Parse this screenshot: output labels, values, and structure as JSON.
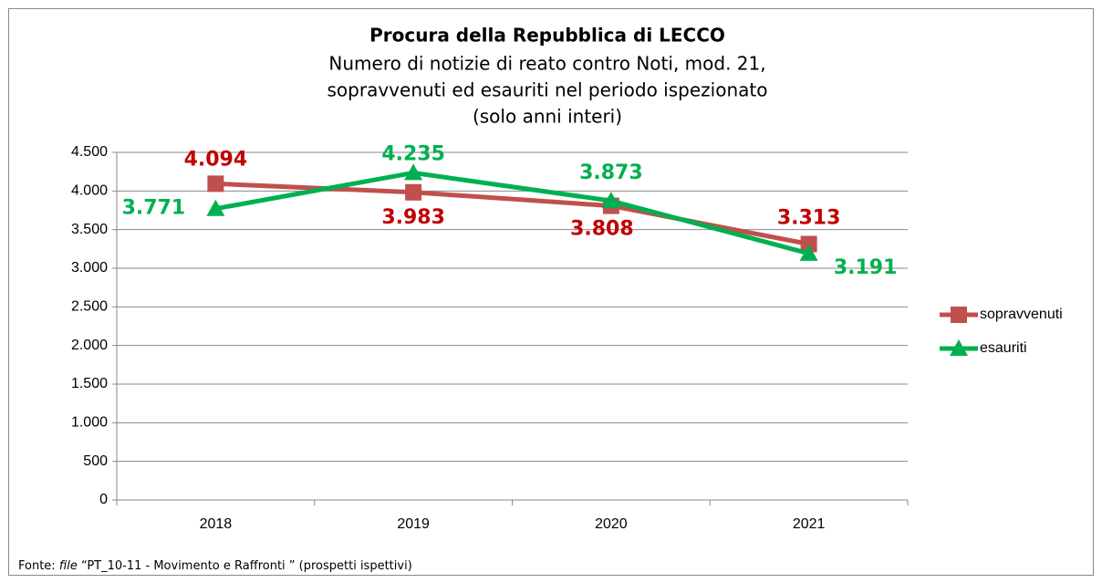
{
  "chart_data": {
    "type": "line",
    "title": "Procura della Repubblica di LECCO",
    "subtitle": [
      "Numero di notizie di reato contro Noti, mod. 21,",
      "sopravvenuti ed esauriti nel periodo ispezionato",
      "(solo anni interi)"
    ],
    "categories": [
      "2018",
      "2019",
      "2020",
      "2021"
    ],
    "series": [
      {
        "name": "sopravvenuti",
        "color": "#c0504d",
        "label_color": "#c00000",
        "marker": "square",
        "values": [
          4094,
          3983,
          3808,
          3313
        ],
        "value_labels": [
          "4.094",
          "3.983",
          "3.808",
          "3.313"
        ]
      },
      {
        "name": "esauriti",
        "color": "#00b050",
        "label_color": "#00b050",
        "marker": "triangle",
        "values": [
          3771,
          4235,
          3873,
          3191
        ],
        "value_labels": [
          "3.771",
          "4.235",
          "3.873",
          "3.191"
        ]
      }
    ],
    "ylim": [
      0,
      4500
    ],
    "yticks": [
      0,
      500,
      {
        "value": 1000,
        "label": "1.000"
      },
      {
        "value": 1500,
        "label": "1.500"
      },
      {
        "value": 2000,
        "label": "2.000"
      },
      {
        "value": 2500,
        "label": "2.500"
      },
      {
        "value": 3000,
        "label": "3.000"
      },
      {
        "value": 3500,
        "label": "3.500"
      },
      {
        "value": 4000,
        "label": "4.000"
      },
      {
        "value": 4500,
        "label": "4.500"
      }
    ],
    "grid": true,
    "legend": "right",
    "source": {
      "prefix": "Fonte:",
      "italic": "file",
      "rest": "“PT_10-11 - Movimento e Raffronti ” (prospetti ispettivi)"
    }
  }
}
